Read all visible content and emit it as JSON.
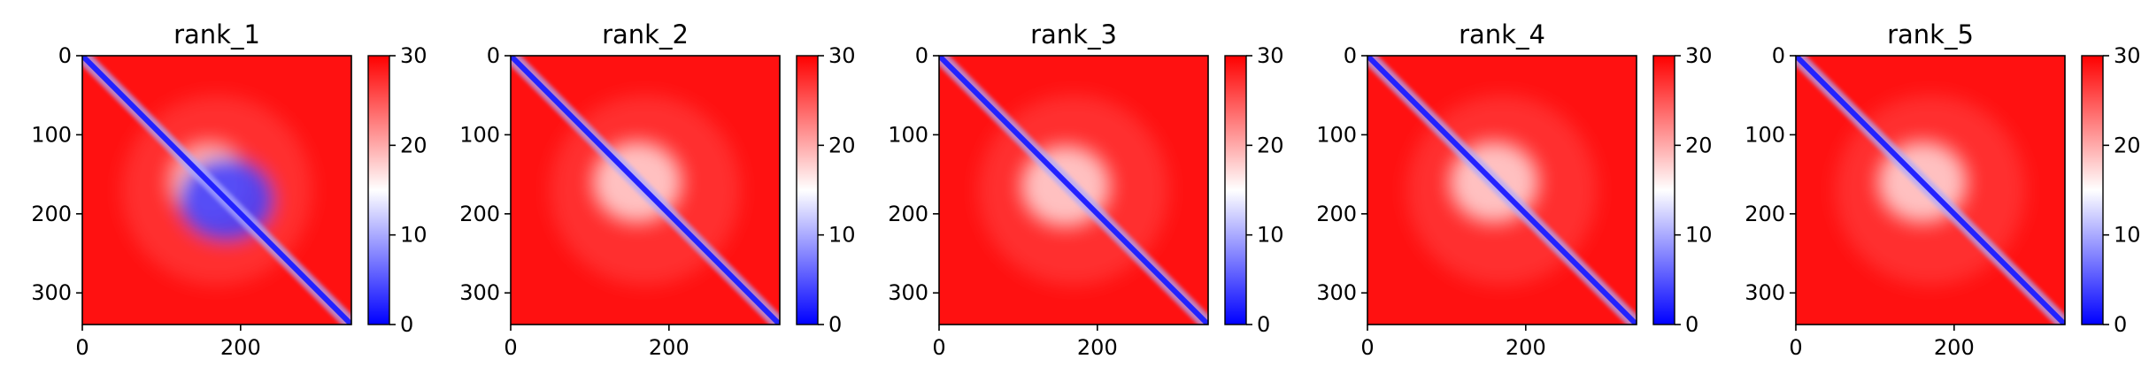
{
  "chart_data": [
    {
      "type": "heatmap",
      "title": "rank_1",
      "x_ticks": [
        "0",
        "200"
      ],
      "y_ticks": [
        "0",
        "100",
        "200",
        "300"
      ],
      "axis_range": [
        0,
        340
      ],
      "colorbar": {
        "ticks": [
          "0",
          "10",
          "20",
          "30"
        ],
        "range": [
          0,
          30
        ],
        "colors": [
          "#0000ff",
          "#ffffff",
          "#ff0000"
        ]
      },
      "diagonal_value": 2,
      "background_value": 29,
      "features": [
        {
          "center": [
            182,
            182
          ],
          "size": [
            120,
            105
          ],
          "value": 4,
          "strength": 0.9
        },
        {
          "center": [
            160,
            160
          ],
          "size": [
            100,
            100
          ],
          "value": 15,
          "strength": 0.6
        },
        {
          "center": [
            170,
            170
          ],
          "size": [
            240,
            240
          ],
          "value": 24,
          "strength": 0.35
        }
      ]
    },
    {
      "type": "heatmap",
      "title": "rank_2",
      "x_ticks": [
        "0",
        "200"
      ],
      "y_ticks": [
        "0",
        "100",
        "200",
        "300"
      ],
      "axis_range": [
        0,
        340
      ],
      "colorbar": {
        "ticks": [
          "0",
          "10",
          "20",
          "30"
        ],
        "range": [
          0,
          30
        ],
        "colors": [
          "#0000ff",
          "#ffffff",
          "#ff0000"
        ]
      },
      "diagonal_value": 2,
      "background_value": 29,
      "features": [
        {
          "center": [
            160,
            160
          ],
          "size": [
            110,
            100
          ],
          "value": 15,
          "strength": 0.7
        },
        {
          "center": [
            170,
            170
          ],
          "size": [
            240,
            240
          ],
          "value": 24,
          "strength": 0.35
        }
      ]
    },
    {
      "type": "heatmap",
      "title": "rank_3",
      "x_ticks": [
        "0",
        "200"
      ],
      "y_ticks": [
        "0",
        "100",
        "200",
        "300"
      ],
      "axis_range": [
        0,
        340
      ],
      "colorbar": {
        "ticks": [
          "0",
          "10",
          "20",
          "30"
        ],
        "range": [
          0,
          30
        ],
        "colors": [
          "#0000ff",
          "#ffffff",
          "#ff0000"
        ]
      },
      "diagonal_value": 2,
      "background_value": 29,
      "features": [
        {
          "center": [
            160,
            165
          ],
          "size": [
            110,
            100
          ],
          "value": 15,
          "strength": 0.7
        },
        {
          "center": [
            170,
            170
          ],
          "size": [
            240,
            240
          ],
          "value": 24,
          "strength": 0.35
        }
      ]
    },
    {
      "type": "heatmap",
      "title": "rank_4",
      "x_ticks": [
        "0",
        "200"
      ],
      "y_ticks": [
        "0",
        "100",
        "200",
        "300"
      ],
      "axis_range": [
        0,
        340
      ],
      "colorbar": {
        "ticks": [
          "0",
          "10",
          "20",
          "30"
        ],
        "range": [
          0,
          30
        ],
        "colors": [
          "#0000ff",
          "#ffffff",
          "#ff0000"
        ]
      },
      "diagonal_value": 2,
      "background_value": 29,
      "features": [
        {
          "center": [
            160,
            160
          ],
          "size": [
            110,
            100
          ],
          "value": 15,
          "strength": 0.7
        },
        {
          "center": [
            170,
            170
          ],
          "size": [
            240,
            240
          ],
          "value": 24,
          "strength": 0.35
        }
      ]
    },
    {
      "type": "heatmap",
      "title": "rank_5",
      "x_ticks": [
        "0",
        "200"
      ],
      "y_ticks": [
        "0",
        "100",
        "200",
        "300"
      ],
      "axis_range": [
        0,
        340
      ],
      "colorbar": {
        "ticks": [
          "0",
          "10",
          "20",
          "30"
        ],
        "range": [
          0,
          30
        ],
        "colors": [
          "#0000ff",
          "#ffffff",
          "#ff0000"
        ]
      },
      "diagonal_value": 2,
      "background_value": 29,
      "features": [
        {
          "center": [
            160,
            160
          ],
          "size": [
            110,
            100
          ],
          "value": 15,
          "strength": 0.7
        },
        {
          "center": [
            170,
            170
          ],
          "size": [
            240,
            240
          ],
          "value": 24,
          "strength": 0.35
        }
      ]
    }
  ]
}
